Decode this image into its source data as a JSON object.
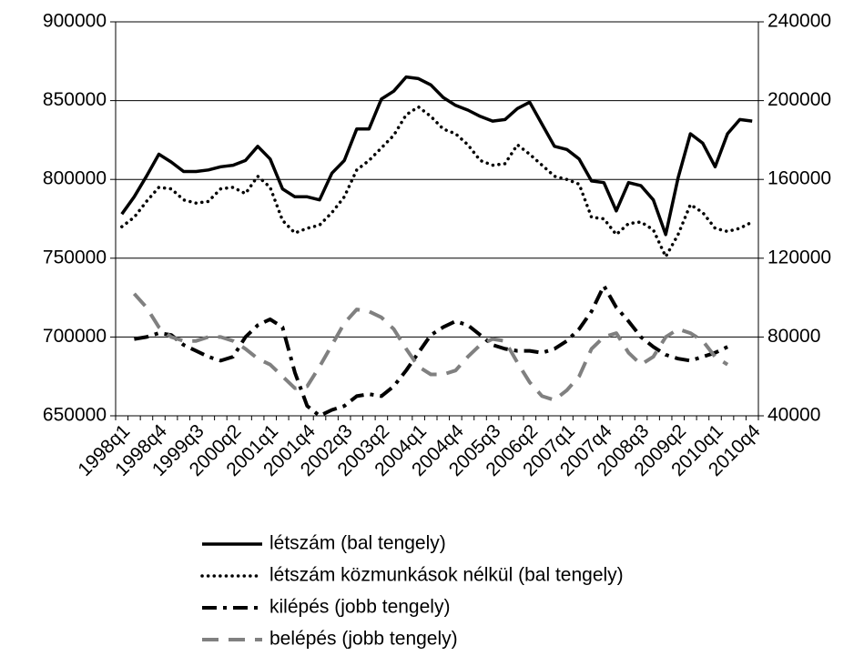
{
  "chart_data": {
    "type": "line",
    "categories": [
      "1998q1",
      null,
      null,
      "1998q4",
      null,
      null,
      "1999q3",
      null,
      null,
      "2000q2",
      null,
      null,
      "2001q1",
      null,
      null,
      "2001q4",
      null,
      null,
      "2002q3",
      null,
      null,
      "2003q2",
      null,
      null,
      "2004q1",
      null,
      null,
      "2004q4",
      null,
      null,
      "2005q3",
      null,
      null,
      "2006q2",
      null,
      null,
      "2007q1",
      null,
      null,
      "2007q4",
      null,
      null,
      "2008q3",
      null,
      null,
      "2009q2",
      null,
      null,
      "2010q1",
      null,
      null,
      "2010q4"
    ],
    "series": [
      {
        "name": "létszám (bal tengely)",
        "color": "#000000",
        "style": "solid",
        "axis": "y",
        "values": [
          778000,
          789000,
          802000,
          816000,
          811000,
          805000,
          805000,
          806000,
          808000,
          809000,
          812000,
          821000,
          813000,
          794000,
          789000,
          789000,
          787000,
          804000,
          812000,
          832000,
          832000,
          851000,
          856000,
          865000,
          864000,
          860000,
          852000,
          847000,
          844000,
          840000,
          837000,
          838000,
          845000,
          849000,
          835000,
          821000,
          819000,
          813000,
          799000,
          798000,
          780000,
          798000,
          796000,
          787000,
          765000,
          801000,
          829000,
          823000,
          808000,
          829000,
          838000,
          837000
        ]
      },
      {
        "name": "létszám közmunkások nélkül (bal tengely)",
        "color": "#000000",
        "style": "dotted",
        "axis": "y",
        "values": [
          770000,
          776000,
          786000,
          795000,
          794000,
          787000,
          785000,
          786000,
          794000,
          795000,
          791000,
          802000,
          795000,
          774000,
          766000,
          769000,
          771000,
          779000,
          789000,
          806000,
          812000,
          820000,
          828000,
          841000,
          846000,
          840000,
          832000,
          829000,
          822000,
          812000,
          809000,
          810000,
          822000,
          816000,
          809000,
          802000,
          800000,
          797000,
          776000,
          775000,
          765000,
          772000,
          773000,
          768000,
          751000,
          765000,
          784000,
          779000,
          769000,
          767000,
          769000,
          773000
        ]
      },
      {
        "name": "kilépés (jobb tengely)",
        "color": "#000000",
        "style": "dashdot",
        "axis": "y2",
        "values": [
          null,
          79000,
          80000,
          82000,
          81000,
          76000,
          73000,
          70000,
          68000,
          70000,
          80000,
          86000,
          89000,
          85000,
          62000,
          45000,
          40000,
          43000,
          45000,
          50000,
          51000,
          50000,
          55000,
          63000,
          72000,
          81000,
          85000,
          88000,
          86000,
          81000,
          76000,
          74000,
          73000,
          73000,
          72000,
          74000,
          78000,
          84000,
          93000,
          106000,
          95000,
          88000,
          80000,
          75000,
          71000,
          69000,
          68000,
          70000,
          72000,
          75000,
          null,
          null
        ]
      },
      {
        "name": "belépés (jobb tengely)",
        "color": "#808080",
        "style": "dashed",
        "axis": "y2",
        "values": [
          null,
          102000,
          95000,
          85000,
          80000,
          78000,
          78000,
          80000,
          80000,
          78000,
          74000,
          69000,
          66000,
          60000,
          54000,
          55000,
          65000,
          76000,
          87000,
          94000,
          93000,
          90000,
          84000,
          74000,
          65000,
          61000,
          61000,
          63000,
          70000,
          76000,
          79000,
          78000,
          67000,
          57000,
          50000,
          48000,
          53000,
          60000,
          74000,
          80000,
          82000,
          72000,
          66000,
          70000,
          80000,
          84000,
          82000,
          78000,
          70000,
          66000,
          null,
          null
        ]
      }
    ],
    "ylim": [
      650000,
      900000
    ],
    "yticks": [
      650000,
      700000,
      750000,
      800000,
      850000,
      900000
    ],
    "y2lim": [
      40000,
      240000
    ],
    "y2ticks": [
      40000,
      80000,
      120000,
      160000,
      200000,
      240000
    ],
    "grid": true,
    "legend": "bottom"
  }
}
